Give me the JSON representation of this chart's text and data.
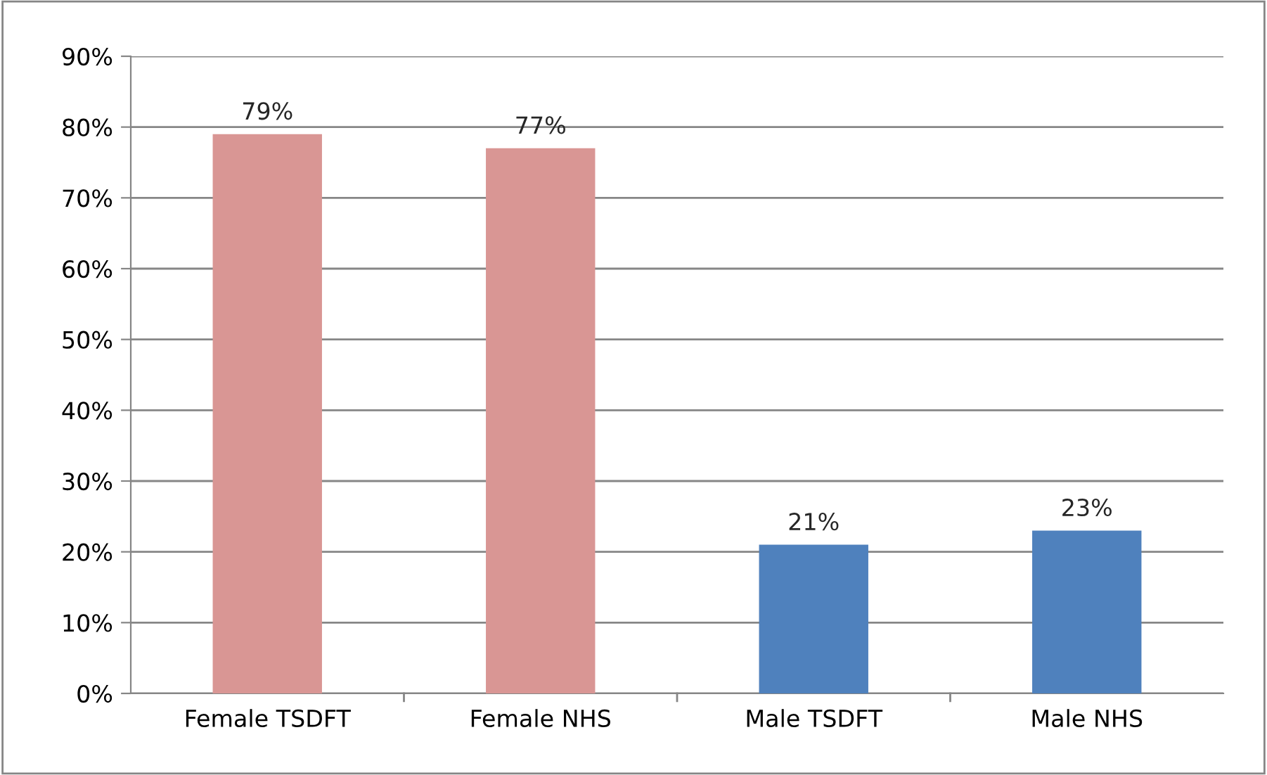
{
  "chart_data": {
    "type": "bar",
    "categories": [
      "Female TSDFT",
      "Female NHS",
      "Male TSDFT",
      "Male NHS"
    ],
    "values": [
      79,
      77,
      21,
      23
    ],
    "colors": [
      "#d99694",
      "#d99694",
      "#4f81bd",
      "#4f81bd"
    ],
    "value_labels": [
      "79%",
      "77%",
      "21%",
      "23%"
    ],
    "ylim": [
      0,
      90
    ],
    "yticks": [
      {
        "value": 0,
        "label": "0%"
      },
      {
        "value": 10,
        "label": "10%"
      },
      {
        "value": 20,
        "label": "20%"
      },
      {
        "value": 30,
        "label": "30%"
      },
      {
        "value": 40,
        "label": "40%"
      },
      {
        "value": 50,
        "label": "50%"
      },
      {
        "value": 60,
        "label": "60%"
      },
      {
        "value": 70,
        "label": "70%"
      },
      {
        "value": 80,
        "label": "80%"
      },
      {
        "value": 90,
        "label": "90%"
      }
    ],
    "grid": "y",
    "legend": false
  }
}
